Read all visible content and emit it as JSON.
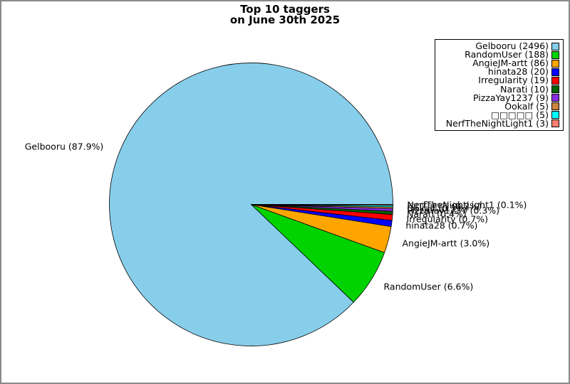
{
  "figure": {
    "background": "#ffffff",
    "border_color": "#8a8a8a"
  },
  "chart_data": {
    "type": "pie",
    "title_line1": "Top 10 taggers",
    "title_line2": "on June 30th 2025",
    "total": 2841,
    "start_angle_deg": 0,
    "direction": "counterclockwise",
    "legend_position": "upper right",
    "slice_edge_color": "#000000",
    "text_color": "#000000",
    "slices": [
      {
        "label": "Gelbooru",
        "count": 2496,
        "pct_label": "87.9%",
        "color": "#87CEEB"
      },
      {
        "label": "RandomUser",
        "count": 188,
        "pct_label": "6.6%",
        "color": "#00D300"
      },
      {
        "label": "AngieJM-artt",
        "count": 86,
        "pct_label": "3.0%",
        "color": "#FFA500"
      },
      {
        "label": "hinata28",
        "count": 20,
        "pct_label": "0.7%",
        "color": "#0000FF"
      },
      {
        "label": "Irregularity",
        "count": 19,
        "pct_label": "0.7%",
        "color": "#FF0000"
      },
      {
        "label": "Narati",
        "count": 10,
        "pct_label": "0.4%",
        "color": "#006400"
      },
      {
        "label": "PizzaYay1237",
        "count": 9,
        "pct_label": "0.3%",
        "color": "#8A2BE2"
      },
      {
        "label": "Ookalf",
        "count": 5,
        "pct_label": "0.2%",
        "color": "#CD853F"
      },
      {
        "label": "□□□□□",
        "count": 5,
        "pct_label": "0.2%",
        "color": "#00FFFF"
      },
      {
        "label": "NerfTheNightLight1",
        "count": 3,
        "pct_label": "0.1%",
        "color": "#FA8072"
      }
    ]
  }
}
